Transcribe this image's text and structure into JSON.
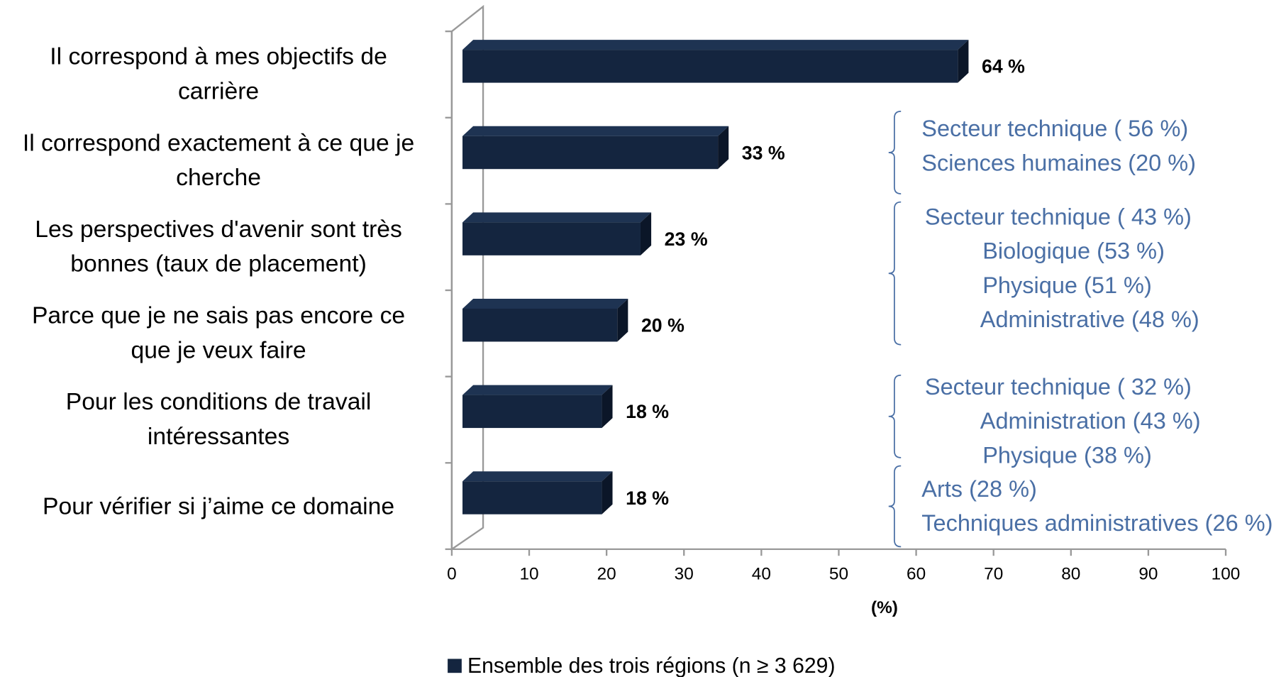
{
  "chart_data": {
    "type": "bar",
    "orientation": "horizontal",
    "categories": [
      [
        "Il correspond à mes objectifs de",
        "carrière"
      ],
      [
        "Il correspond exactement à ce que je",
        "cherche"
      ],
      [
        "Les perspectives d'avenir sont très",
        "bonnes (taux de placement)"
      ],
      [
        "Parce que je ne sais pas encore ce",
        "que je veux faire"
      ],
      [
        "Pour les conditions de travail",
        "intéressantes"
      ],
      [
        "Pour vérifier si j’aime ce domaine"
      ]
    ],
    "series": [
      {
        "name": "Ensemble des trois régions (n ≥ 3 629)",
        "color": "#14253f",
        "values": [
          64,
          33,
          23,
          20,
          18,
          18
        ],
        "value_labels": [
          "64 %",
          "33 %",
          "23 %",
          "20 %",
          "18 %",
          "18 %"
        ]
      }
    ],
    "xlim": [
      0,
      100
    ],
    "xticks": [
      0,
      10,
      20,
      30,
      40,
      50,
      60,
      70,
      80,
      90,
      100
    ],
    "xlabel": "(%)",
    "annotations": [
      [
        "Secteur technique ( 56 %)",
        "Sciences humaines (20 %)"
      ],
      [
        "Secteur technique ( 43 %)",
        "Biologique (53 %)",
        "Physique (51 %)",
        "Administrative (48 %)"
      ],
      [
        "Secteur technique ( 32 %)",
        "Administration (43 %)",
        "Physique (38 %)"
      ],
      [
        "Arts (28 %)",
        "Techniques administratives (26 %)"
      ]
    ],
    "annotation_color": "#4a6fa5",
    "legend": "bottom"
  }
}
